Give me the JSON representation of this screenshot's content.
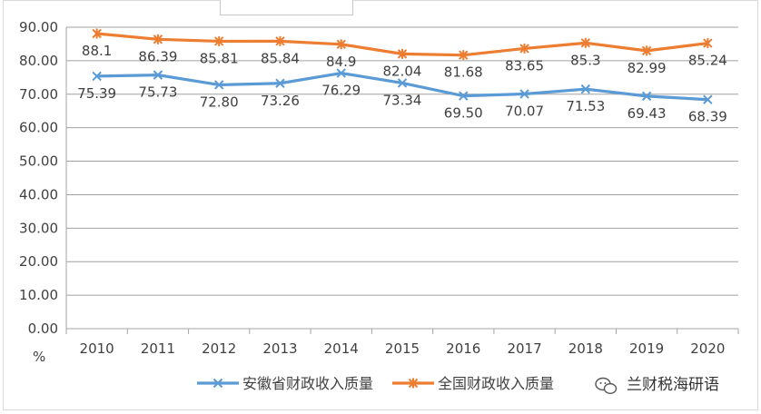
{
  "chart_data": {
    "type": "line",
    "categories": [
      "2010",
      "2011",
      "2012",
      "2013",
      "2014",
      "2015",
      "2016",
      "2017",
      "2018",
      "2019",
      "2020"
    ],
    "y_unit": "%",
    "ylim": [
      0,
      90
    ],
    "ytick_step": 10,
    "ytick_labels": [
      "0.00",
      "10.00",
      "20.00",
      "30.00",
      "40.00",
      "50.00",
      "60.00",
      "70.00",
      "80.00",
      "90.00"
    ],
    "grid": true,
    "legend_position": "bottom",
    "series": [
      {
        "name": "安徽省财政收入质量",
        "color": "#5b9bd5",
        "marker": "x",
        "values": [
          75.39,
          75.73,
          72.8,
          73.26,
          76.29,
          73.34,
          69.5,
          70.07,
          71.53,
          69.43,
          68.39
        ],
        "labels": [
          "75.39",
          "75.73",
          "72.80",
          "73.26",
          "76.29",
          "73.34",
          "69.50",
          "70.07",
          "71.53",
          "69.43",
          "68.39"
        ]
      },
      {
        "name": "全国财政收入质量",
        "color": "#ed7d31",
        "marker": "asterisk",
        "values": [
          88.1,
          86.39,
          85.81,
          85.84,
          84.9,
          82.04,
          81.68,
          83.65,
          85.3,
          82.99,
          85.24
        ],
        "labels": [
          "88.1",
          "86.39",
          "85.81",
          "85.84",
          "84.9",
          "82.04",
          "81.68",
          "83.65",
          "85.3",
          "82.99",
          "85.24"
        ]
      }
    ]
  },
  "watermark": {
    "icon": "wechat-icon",
    "text": "兰财税海研语"
  }
}
